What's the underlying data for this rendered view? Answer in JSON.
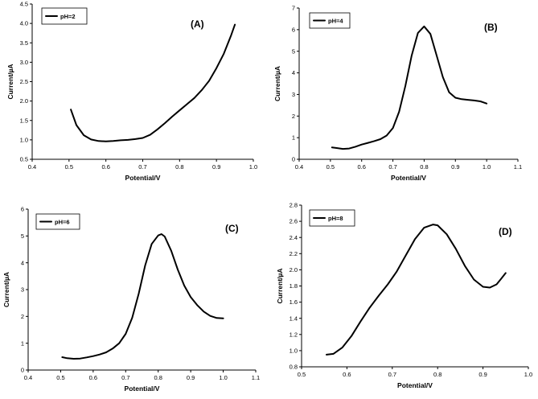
{
  "chart_data": [
    {
      "type": "line",
      "panel_label": "(A)",
      "xlabel": "Potential/V",
      "ylabel": "Current/µA",
      "xlim": [
        0.4,
        1.0
      ],
      "ylim": [
        0.5,
        4.5
      ],
      "xticks": [
        "0.4",
        "0.5",
        "0.6",
        "0.7",
        "0.8",
        "0.9",
        "1.0"
      ],
      "yticks": [
        "0.5",
        "1.0",
        "1.5",
        "2.0",
        "2.5",
        "3.0",
        "3.5",
        "4.0",
        "4.5"
      ],
      "legend": "pH=2",
      "legend_position": "top-left",
      "series": [
        {
          "name": "pH=2",
          "x": [
            0.505,
            0.52,
            0.54,
            0.56,
            0.58,
            0.6,
            0.62,
            0.64,
            0.66,
            0.68,
            0.7,
            0.72,
            0.74,
            0.76,
            0.78,
            0.8,
            0.82,
            0.84,
            0.86,
            0.88,
            0.9,
            0.92,
            0.94,
            0.95
          ],
          "y": [
            1.78,
            1.38,
            1.12,
            1.01,
            0.97,
            0.96,
            0.97,
            0.99,
            1.0,
            1.02,
            1.05,
            1.13,
            1.27,
            1.43,
            1.6,
            1.76,
            1.92,
            2.08,
            2.28,
            2.52,
            2.85,
            3.22,
            3.7,
            3.97
          ]
        }
      ]
    },
    {
      "type": "line",
      "panel_label": "(B)",
      "xlabel": "Potential/V",
      "ylabel": "Current/µA",
      "xlim": [
        0.4,
        1.1
      ],
      "ylim": [
        0,
        7
      ],
      "xticks": [
        "0.4",
        "0.5",
        "0.6",
        "0.7",
        "0.8",
        "0.9",
        "1.0",
        "1.1"
      ],
      "yticks": [
        "0",
        "1",
        "2",
        "3",
        "4",
        "5",
        "6",
        "7"
      ],
      "legend": "pH=4",
      "legend_position": "top-left",
      "series": [
        {
          "name": "pH=4",
          "x": [
            0.505,
            0.52,
            0.54,
            0.56,
            0.58,
            0.6,
            0.62,
            0.64,
            0.66,
            0.68,
            0.7,
            0.72,
            0.74,
            0.76,
            0.78,
            0.8,
            0.82,
            0.84,
            0.86,
            0.88,
            0.9,
            0.92,
            0.94,
            0.96,
            0.98,
            1.0
          ],
          "y": [
            0.55,
            0.52,
            0.48,
            0.5,
            0.58,
            0.68,
            0.76,
            0.84,
            0.93,
            1.1,
            1.45,
            2.2,
            3.4,
            4.8,
            5.85,
            6.15,
            5.8,
            4.8,
            3.8,
            3.1,
            2.85,
            2.78,
            2.75,
            2.72,
            2.68,
            2.58
          ]
        }
      ]
    },
    {
      "type": "line",
      "panel_label": "(C)",
      "xlabel": "Potential/V",
      "ylabel": "Current/µA",
      "xlim": [
        0.4,
        1.1
      ],
      "ylim": [
        0,
        6
      ],
      "xticks": [
        "0.4",
        "0.5",
        "0.6",
        "0.7",
        "0.8",
        "0.9",
        "1.0",
        "1.1"
      ],
      "yticks": [
        "0",
        "1",
        "2",
        "3",
        "4",
        "5",
        "6"
      ],
      "legend": "pH=6",
      "legend_position": "top-left",
      "series": [
        {
          "name": "pH=6",
          "x": [
            0.505,
            0.52,
            0.54,
            0.56,
            0.58,
            0.6,
            0.62,
            0.64,
            0.66,
            0.68,
            0.7,
            0.72,
            0.74,
            0.76,
            0.78,
            0.8,
            0.81,
            0.82,
            0.84,
            0.86,
            0.88,
            0.9,
            0.92,
            0.94,
            0.96,
            0.98,
            1.0
          ],
          "y": [
            0.48,
            0.44,
            0.42,
            0.43,
            0.47,
            0.52,
            0.58,
            0.66,
            0.8,
            1.0,
            1.35,
            1.95,
            2.85,
            3.9,
            4.7,
            5.02,
            5.07,
            4.98,
            4.45,
            3.75,
            3.15,
            2.72,
            2.42,
            2.18,
            2.02,
            1.94,
            1.93
          ]
        }
      ]
    },
    {
      "type": "line",
      "panel_label": "(D)",
      "xlabel": "Potential/V",
      "ylabel": "Current/µA",
      "xlim": [
        0.5,
        1.0
      ],
      "ylim": [
        0.8,
        2.8
      ],
      "xticks": [
        "0.5",
        "0.6",
        "0.7",
        "0.8",
        "0.9",
        "1.0"
      ],
      "yticks": [
        "0.8",
        "1.0",
        "1.2",
        "1.4",
        "1.6",
        "1.8",
        "2.0",
        "2.2",
        "2.4",
        "2.6",
        "2.8"
      ],
      "legend": "pH=8",
      "legend_position": "top-left",
      "series": [
        {
          "name": "pH=8",
          "x": [
            0.555,
            0.57,
            0.59,
            0.61,
            0.63,
            0.65,
            0.67,
            0.69,
            0.71,
            0.73,
            0.75,
            0.77,
            0.79,
            0.8,
            0.82,
            0.84,
            0.86,
            0.88,
            0.9,
            0.915,
            0.93,
            0.94,
            0.95
          ],
          "y": [
            0.95,
            0.96,
            1.04,
            1.18,
            1.36,
            1.53,
            1.68,
            1.82,
            1.98,
            2.18,
            2.38,
            2.52,
            2.56,
            2.55,
            2.44,
            2.26,
            2.05,
            1.88,
            1.79,
            1.78,
            1.82,
            1.89,
            1.96
          ]
        }
      ]
    }
  ]
}
